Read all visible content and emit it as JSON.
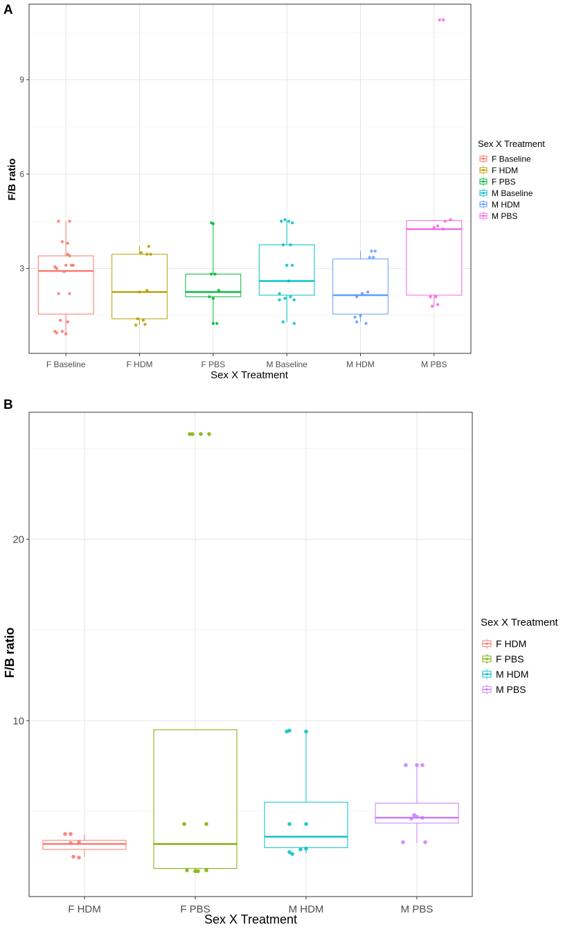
{
  "chart_data": [
    {
      "panel": "A",
      "type": "boxplot",
      "xlabel": "Sex X Treatment",
      "ylabel": "F/B ratio",
      "ylim": [
        0.3,
        11.4
      ],
      "yticks": [
        3,
        6,
        9
      ],
      "legend_title": "Sex X Treatment",
      "legend_position": "right",
      "categories": [
        "F Baseline",
        "F HDM",
        "F PBS",
        "M Baseline",
        "M HDM",
        "M PBS"
      ],
      "colors": [
        "#F8766D",
        "#B79F00",
        "#00BA38",
        "#00BFC4",
        "#619CFF",
        "#F564E3"
      ],
      "boxes": [
        {
          "q1": 1.55,
          "median": 2.92,
          "q3": 3.4,
          "lower": 0.92,
          "upper": 4.5
        },
        {
          "q1": 1.4,
          "median": 2.25,
          "q3": 3.45,
          "lower": 1.2,
          "upper": 3.7
        },
        {
          "q1": 2.1,
          "median": 2.25,
          "q3": 2.82,
          "lower": 1.25,
          "upper": 4.45
        },
        {
          "q1": 2.15,
          "median": 2.6,
          "q3": 3.75,
          "lower": 1.3,
          "upper": 4.5
        },
        {
          "q1": 1.55,
          "median": 2.15,
          "q3": 3.3,
          "lower": 1.3,
          "upper": 3.55
        },
        {
          "q1": 2.15,
          "median": 4.25,
          "q3": 4.52,
          "lower": 1.8,
          "upper": 4.55
        }
      ],
      "points": [
        [
          [
            -0.3,
            1.0
          ],
          [
            -0.25,
            0.95
          ],
          [
            -0.1,
            1.0
          ],
          [
            0.0,
            0.92
          ],
          [
            -0.15,
            1.35
          ],
          [
            0.05,
            1.3
          ],
          [
            -0.2,
            2.2
          ],
          [
            -0.05,
            2.9
          ],
          [
            0.1,
            2.2
          ],
          [
            0.15,
            3.1
          ],
          [
            -0.25,
            3.0
          ],
          [
            0.0,
            3.1
          ],
          [
            0.05,
            3.45
          ],
          [
            0.1,
            3.4
          ],
          [
            -0.1,
            3.85
          ],
          [
            0.05,
            3.8
          ],
          [
            -0.2,
            4.5
          ],
          [
            0.1,
            4.5
          ],
          [
            0.2,
            3.1
          ],
          [
            -0.3,
            3.05
          ]
        ],
        [
          [
            -0.1,
            1.2
          ],
          [
            0.15,
            1.22
          ],
          [
            -0.05,
            1.4
          ],
          [
            0.1,
            1.35
          ],
          [
            0.0,
            2.25
          ],
          [
            0.2,
            2.3
          ],
          [
            0.2,
            3.45
          ],
          [
            0.25,
            3.7
          ],
          [
            0.05,
            3.5
          ],
          [
            0.3,
            3.45
          ]
        ],
        [
          [
            0.0,
            1.25
          ],
          [
            0.1,
            1.25
          ],
          [
            -0.1,
            2.1
          ],
          [
            0.0,
            2.05
          ],
          [
            0.15,
            2.3
          ],
          [
            -0.05,
            2.82
          ],
          [
            0.05,
            2.82
          ],
          [
            -0.05,
            4.45
          ],
          [
            0.0,
            4.42
          ]
        ],
        [
          [
            -0.1,
            1.3
          ],
          [
            0.2,
            1.25
          ],
          [
            -0.2,
            2.0
          ],
          [
            -0.05,
            2.05
          ],
          [
            0.1,
            2.1
          ],
          [
            0.2,
            2.0
          ],
          [
            -0.2,
            2.2
          ],
          [
            0.05,
            2.6
          ],
          [
            0.15,
            3.1
          ],
          [
            0.0,
            3.1
          ],
          [
            0.1,
            3.75
          ],
          [
            -0.1,
            3.75
          ],
          [
            -0.15,
            4.5
          ],
          [
            0.05,
            4.5
          ],
          [
            0.15,
            4.45
          ],
          [
            -0.05,
            4.55
          ]
        ],
        [
          [
            -0.1,
            1.3
          ],
          [
            0.15,
            1.25
          ],
          [
            -0.15,
            1.45
          ],
          [
            0.0,
            1.5
          ],
          [
            0.05,
            2.2
          ],
          [
            0.2,
            2.25
          ],
          [
            0.25,
            3.35
          ],
          [
            0.35,
            3.35
          ],
          [
            0.3,
            3.55
          ],
          [
            0.4,
            3.55
          ],
          [
            -0.1,
            2.1
          ]
        ],
        [
          [
            -0.05,
            1.8
          ],
          [
            0.1,
            1.85
          ],
          [
            -0.1,
            2.1
          ],
          [
            0.05,
            2.1
          ],
          [
            0.1,
            4.35
          ],
          [
            0.25,
            4.25
          ],
          [
            0.3,
            4.5
          ],
          [
            0.45,
            4.55
          ],
          [
            0.0,
            4.3
          ],
          [
            0.15,
            10.9
          ],
          [
            0.25,
            10.9
          ]
        ]
      ]
    },
    {
      "panel": "B",
      "type": "boxplot",
      "xlabel": "Sex X Treatment",
      "ylabel": "F/B ratio",
      "ylim": [
        0.3,
        27.0
      ],
      "yticks": [
        10,
        20
      ],
      "legend_title": "Sex X Treatment",
      "legend_position": "right",
      "categories": [
        "F HDM",
        "F PBS",
        "M HDM",
        "M PBS"
      ],
      "colors": [
        "#F8766D",
        "#7CAE00",
        "#00BFC4",
        "#C77CFF"
      ],
      "boxes": [
        {
          "q1": 2.9,
          "median": 3.2,
          "q3": 3.4,
          "lower": 2.5,
          "upper": 3.75
        },
        {
          "q1": 1.85,
          "median": 3.2,
          "q3": 9.5,
          "lower": 1.7,
          "upper": 9.5
        },
        {
          "q1": 3.0,
          "median": 3.6,
          "q3": 5.5,
          "lower": 2.7,
          "upper": 9.4
        },
        {
          "q1": 4.35,
          "median": 4.65,
          "q3": 5.45,
          "lower": 3.25,
          "upper": 7.55
        }
      ],
      "points": [
        [
          [
            -0.35,
            3.75
          ],
          [
            -0.25,
            3.75
          ],
          [
            -0.2,
            2.5
          ],
          [
            -0.1,
            2.45
          ],
          [
            -0.25,
            3.25
          ],
          [
            -0.1,
            3.3
          ]
        ],
        [
          [
            -0.2,
            4.3
          ],
          [
            0.2,
            4.3
          ],
          [
            -0.15,
            1.75
          ],
          [
            0.0,
            1.7
          ],
          [
            0.2,
            1.75
          ],
          [
            0.05,
            1.7
          ],
          [
            -0.05,
            25.8
          ],
          [
            0.1,
            25.8
          ],
          [
            0.25,
            25.8
          ],
          [
            -0.1,
            25.8
          ]
        ],
        [
          [
            -0.35,
            9.4
          ],
          [
            -0.3,
            9.45
          ],
          [
            0.0,
            9.4
          ],
          [
            -0.3,
            2.75
          ],
          [
            -0.25,
            2.65
          ],
          [
            -0.1,
            2.9
          ],
          [
            0.0,
            2.95
          ],
          [
            -0.3,
            4.3
          ],
          [
            0.0,
            4.3
          ]
        ],
        [
          [
            -0.2,
            7.55
          ],
          [
            0.0,
            7.55
          ],
          [
            0.1,
            7.55
          ],
          [
            -0.25,
            3.3
          ],
          [
            0.15,
            3.3
          ],
          [
            -0.1,
            4.6
          ],
          [
            0.0,
            4.7
          ],
          [
            0.1,
            4.65
          ],
          [
            -0.05,
            4.8
          ]
        ]
      ]
    }
  ]
}
